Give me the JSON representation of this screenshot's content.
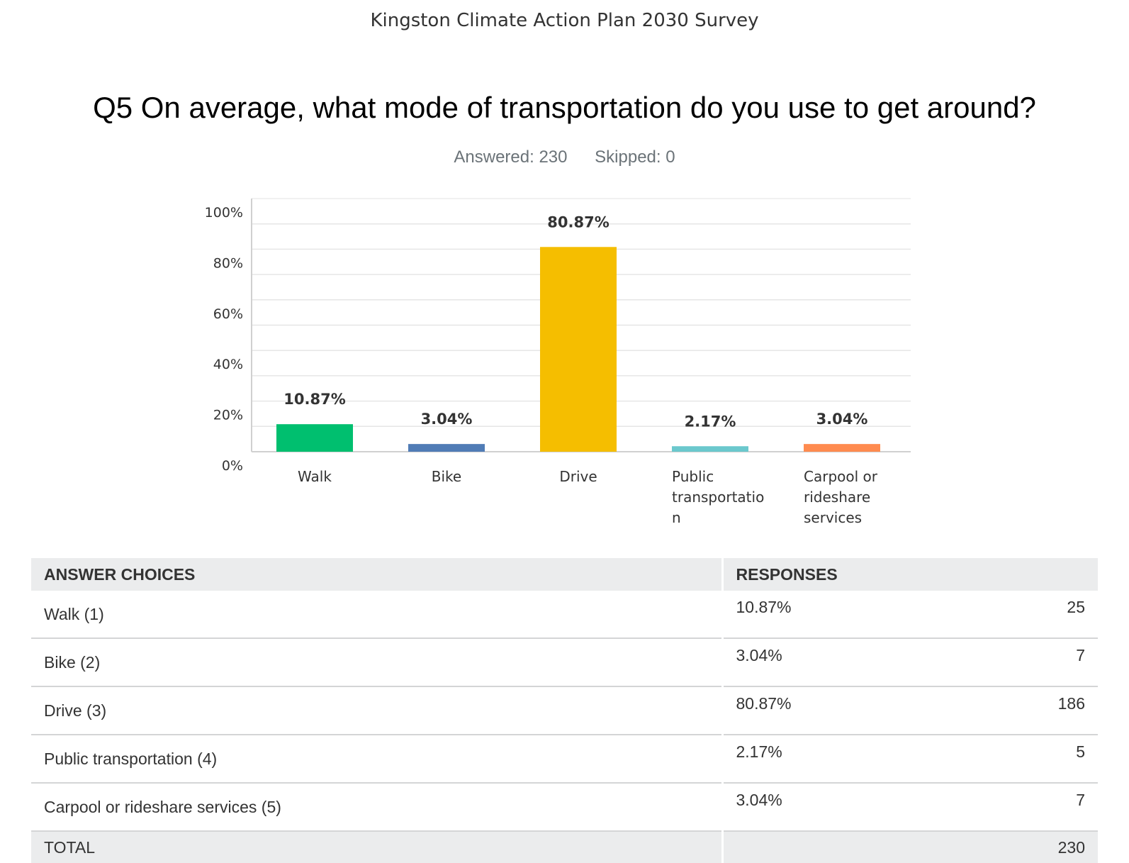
{
  "survey_title": "Kingston Climate Action Plan 2030 Survey",
  "question": "Q5 On average, what mode of transportation do you use to get around?",
  "stats": {
    "answered": "Answered: 230",
    "skipped": "Skipped: 0"
  },
  "chart_data": {
    "type": "bar",
    "categories": [
      "Walk",
      "Bike",
      "Drive",
      "Public transportation",
      "Carpool or rideshare services"
    ],
    "category_lines": [
      [
        "Walk"
      ],
      [
        "Bike"
      ],
      [
        "Drive"
      ],
      [
        "Public",
        "transportatio",
        "n"
      ],
      [
        "Carpool or",
        "rideshare",
        "services"
      ]
    ],
    "values": [
      10.87,
      3.04,
      80.87,
      2.17,
      3.04
    ],
    "value_labels": [
      "10.87%",
      "3.04%",
      "80.87%",
      "2.17%",
      "3.04%"
    ],
    "colors": [
      "#00bf6f",
      "#507cb6",
      "#f5be00",
      "#6bc8cd",
      "#ff8b4f"
    ],
    "ylim": [
      0,
      100
    ],
    "yticks": [
      "0%",
      "20%",
      "40%",
      "60%",
      "80%",
      "100%"
    ],
    "ytick_values": [
      0,
      20,
      40,
      60,
      80,
      100
    ],
    "grid": true
  },
  "table": {
    "headers": {
      "choices": "ANSWER CHOICES",
      "responses": "RESPONSES"
    },
    "rows": [
      {
        "choice": "Walk (1)",
        "percent": "10.87%",
        "count": "25"
      },
      {
        "choice": "Bike (2)",
        "percent": "3.04%",
        "count": "7"
      },
      {
        "choice": "Drive (3)",
        "percent": "80.87%",
        "count": "186"
      },
      {
        "choice": "Public transportation (4)",
        "percent": "2.17%",
        "count": "5"
      },
      {
        "choice": "Carpool or rideshare services (5)",
        "percent": "3.04%",
        "count": "7"
      }
    ],
    "total": {
      "label": "TOTAL",
      "count": "230"
    }
  }
}
